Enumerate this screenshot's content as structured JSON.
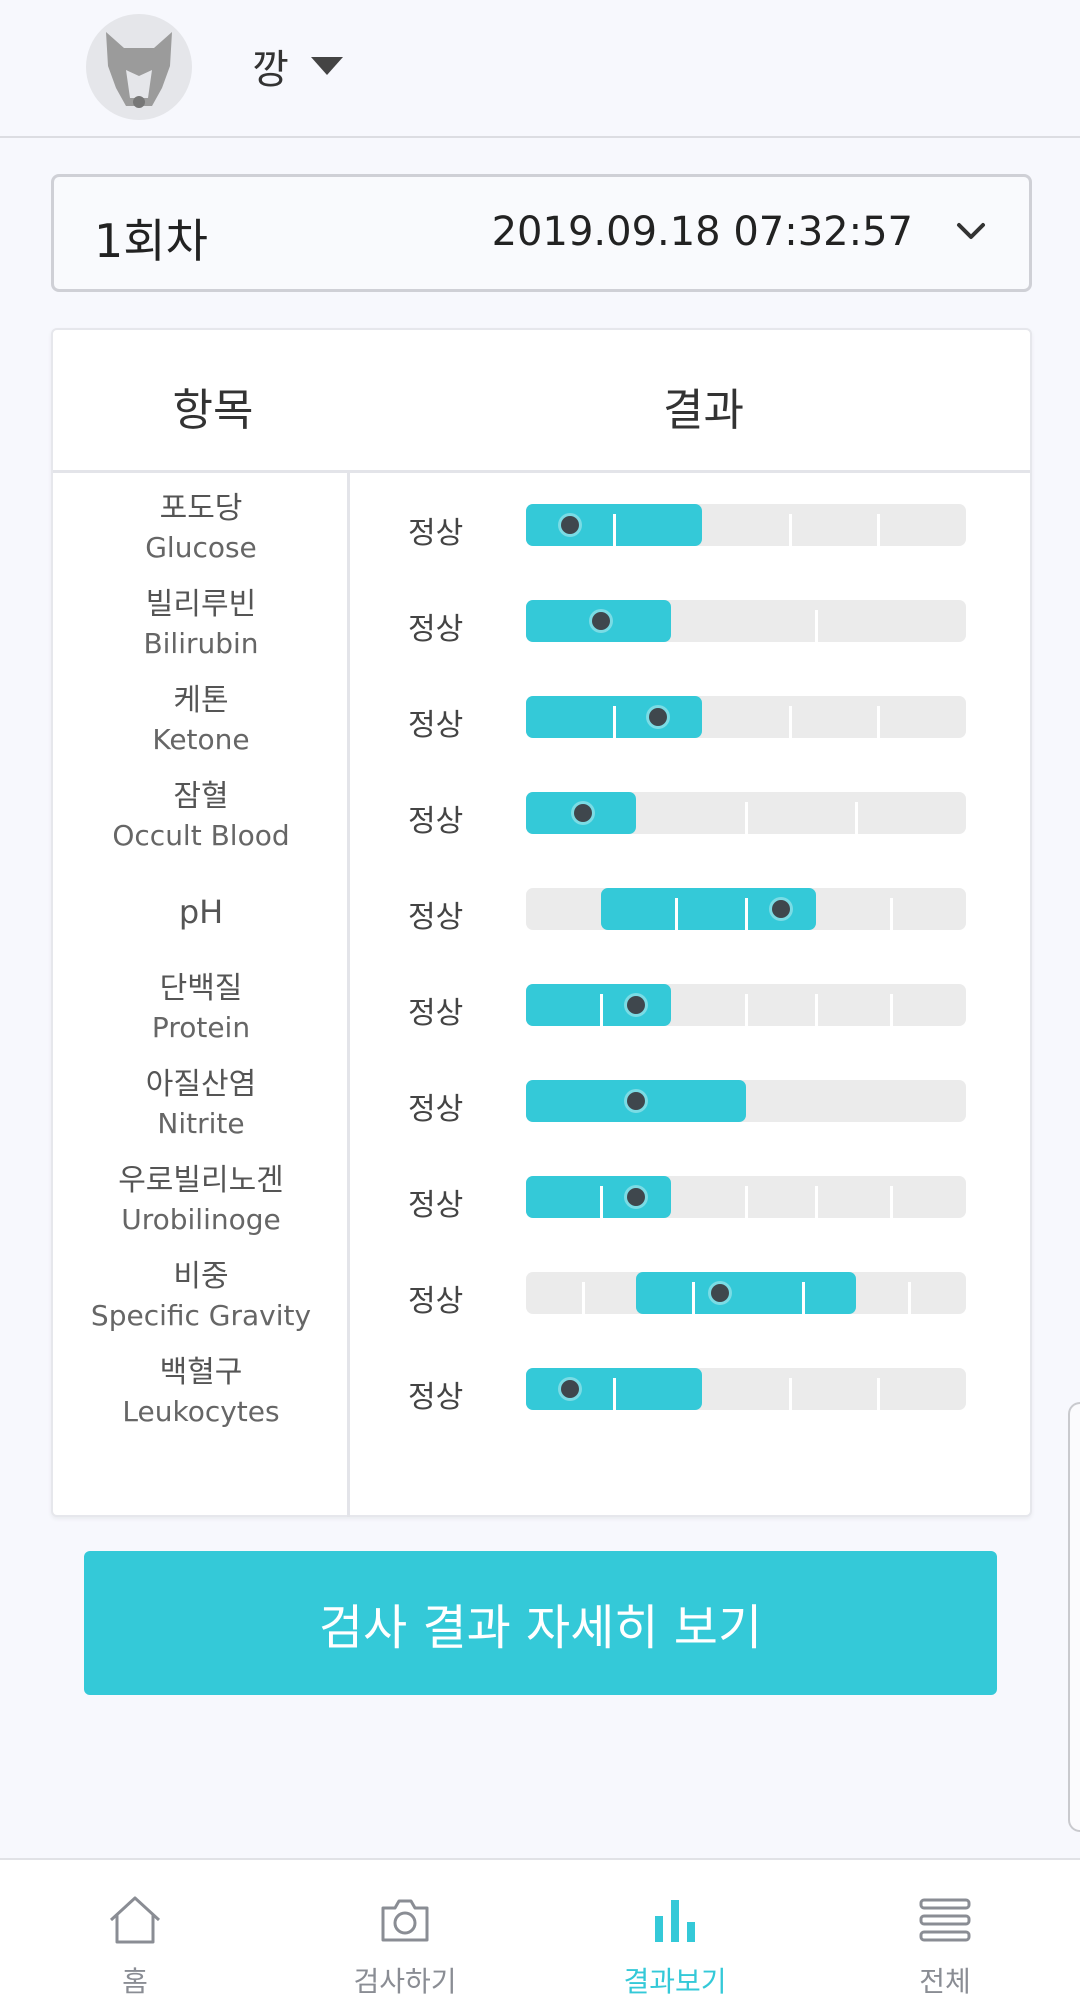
{
  "header": {
    "pet_name": "깡",
    "avatar_icon": "dog-avatar-icon",
    "caret_icon": "caret-down-icon"
  },
  "session": {
    "label": "1회차",
    "datetime": "2019.09.18 07:32:57",
    "chevron_icon": "chevron-down-icon"
  },
  "table": {
    "head_item": "항목",
    "head_result": "결과",
    "rows": [
      {
        "ko": "포도당",
        "en": "Glucose",
        "status": "정상",
        "level": 0.1
      },
      {
        "ko": "빌리루빈",
        "en": "Bilirubin",
        "status": "정상",
        "level": 0.17
      },
      {
        "ko": "케톤",
        "en": "Ketone",
        "status": "정상",
        "level": 0.3
      },
      {
        "ko": "잠혈",
        "en": "Occult Blood",
        "status": "정상",
        "level": 0.13
      },
      {
        "ko": "",
        "en": "pH",
        "status": "정상",
        "level": 0.58
      },
      {
        "ko": "단백질",
        "en": "Protein",
        "status": "정상",
        "level": 0.25
      },
      {
        "ko": "아질산염",
        "en": "Nitrite",
        "status": "정상",
        "level": 0.25
      },
      {
        "ko": "우로빌리노겐",
        "en": "Urobilinoge",
        "status": "정상",
        "level": 0.25
      },
      {
        "ko": "비중",
        "en": "Specific Gravity",
        "status": "정상",
        "level": 0.44
      },
      {
        "ko": "백혈구",
        "en": "Leukocytes",
        "status": "정상",
        "level": 0.1
      }
    ]
  },
  "detail_button": "검사 결과 자세히 보기",
  "nav": {
    "items": [
      {
        "label": "홈",
        "icon": "home-icon",
        "active": false
      },
      {
        "label": "검사하기",
        "icon": "camera-icon",
        "active": false
      },
      {
        "label": "결과보기",
        "icon": "bar-chart-icon",
        "active": true
      },
      {
        "label": "전체",
        "icon": "menu-icon",
        "active": false
      }
    ]
  },
  "colors": {
    "accent": "#34c9d8",
    "track": "#ebebeb",
    "marker": "#3f474d",
    "background": "#f7f8fd"
  }
}
